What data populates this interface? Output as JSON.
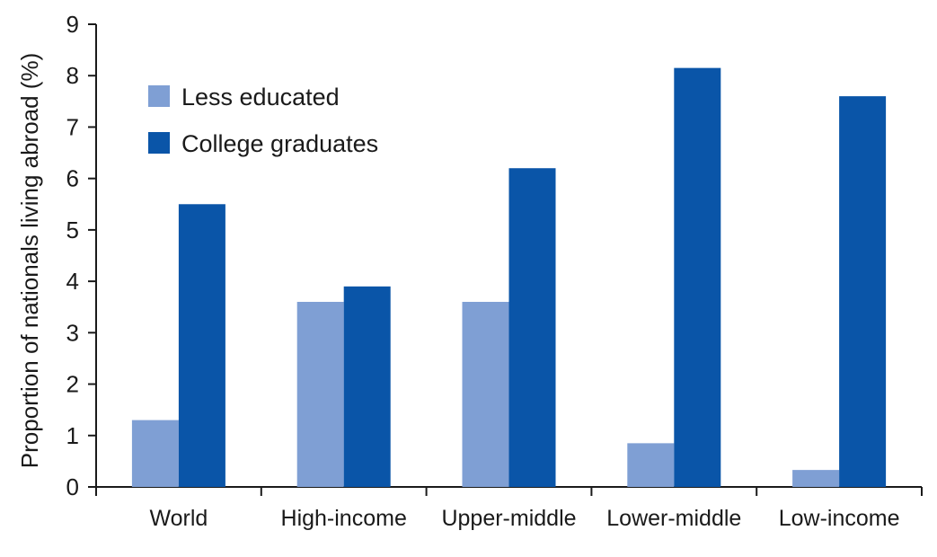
{
  "chart_data": {
    "type": "bar",
    "title": "",
    "xlabel": "",
    "ylabel": "Proportion of nationals living abroad (%)",
    "ylim": [
      0,
      9
    ],
    "yticks": [
      0,
      1,
      2,
      3,
      4,
      5,
      6,
      7,
      8,
      9
    ],
    "categories": [
      "World",
      "High-income",
      "Upper-middle",
      "Lower-middle",
      "Low-income"
    ],
    "series": [
      {
        "name": "Less educated",
        "color": "#7f9fd4",
        "values": [
          1.3,
          3.6,
          3.6,
          0.85,
          0.33
        ]
      },
      {
        "name": "College graduates",
        "color": "#0a55a8",
        "values": [
          5.5,
          3.9,
          6.2,
          8.15,
          7.6
        ]
      }
    ],
    "legend_position": "top-left",
    "grid": false
  }
}
